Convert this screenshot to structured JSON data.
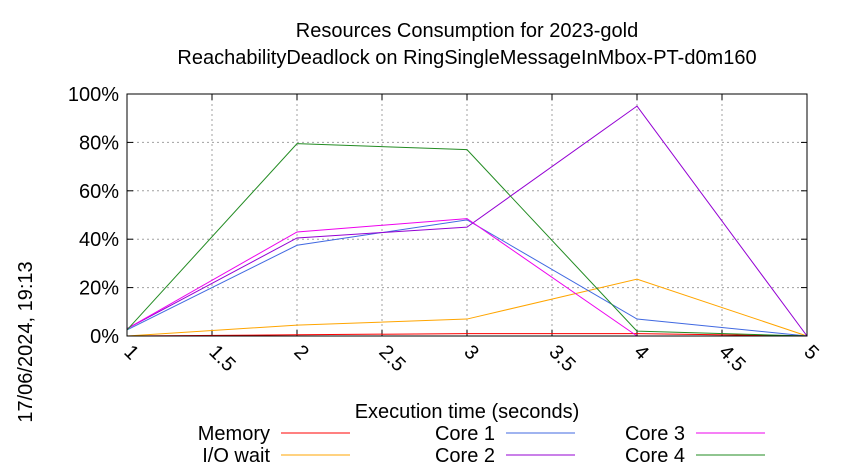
{
  "timestamp": "17/06/2024, 19:13",
  "chart_data": {
    "type": "line",
    "title": "Resources Consumption for 2023-gold",
    "subtitle": "ReachabilityDeadlock on RingSingleMessageInMbox-PT-d0m160",
    "xlabel": "Execution time (seconds)",
    "ylabel": "",
    "xlim": [
      1,
      5
    ],
    "ylim": [
      0,
      100
    ],
    "x_ticks": [
      "1",
      "1.5",
      "2",
      "2.5",
      "3",
      "3.5",
      "4",
      "4.5",
      "5"
    ],
    "y_ticks": [
      "0%",
      "20%",
      "40%",
      "60%",
      "80%",
      "100%"
    ],
    "grid": true,
    "legend_position": "bottom",
    "x": [
      1,
      2,
      3,
      4,
      5
    ],
    "series": [
      {
        "name": "Memory",
        "color": "#ff0000",
        "values": [
          0,
          0.5,
          1,
          1,
          0
        ]
      },
      {
        "name": "I/O wait",
        "color": "#ffa500",
        "values": [
          0,
          4.5,
          7,
          23.5,
          0
        ]
      },
      {
        "name": "Core 1",
        "color": "#4169e1",
        "values": [
          2.5,
          37.5,
          48,
          7,
          0
        ]
      },
      {
        "name": "Core 2",
        "color": "#9400d3",
        "values": [
          3,
          40.5,
          45,
          95,
          0
        ]
      },
      {
        "name": "Core 3",
        "color": "#ee00ee",
        "values": [
          3,
          43,
          48.5,
          0,
          0
        ]
      },
      {
        "name": "Core 4",
        "color": "#228b22",
        "values": [
          2.5,
          79.5,
          77,
          2,
          0
        ]
      }
    ]
  }
}
